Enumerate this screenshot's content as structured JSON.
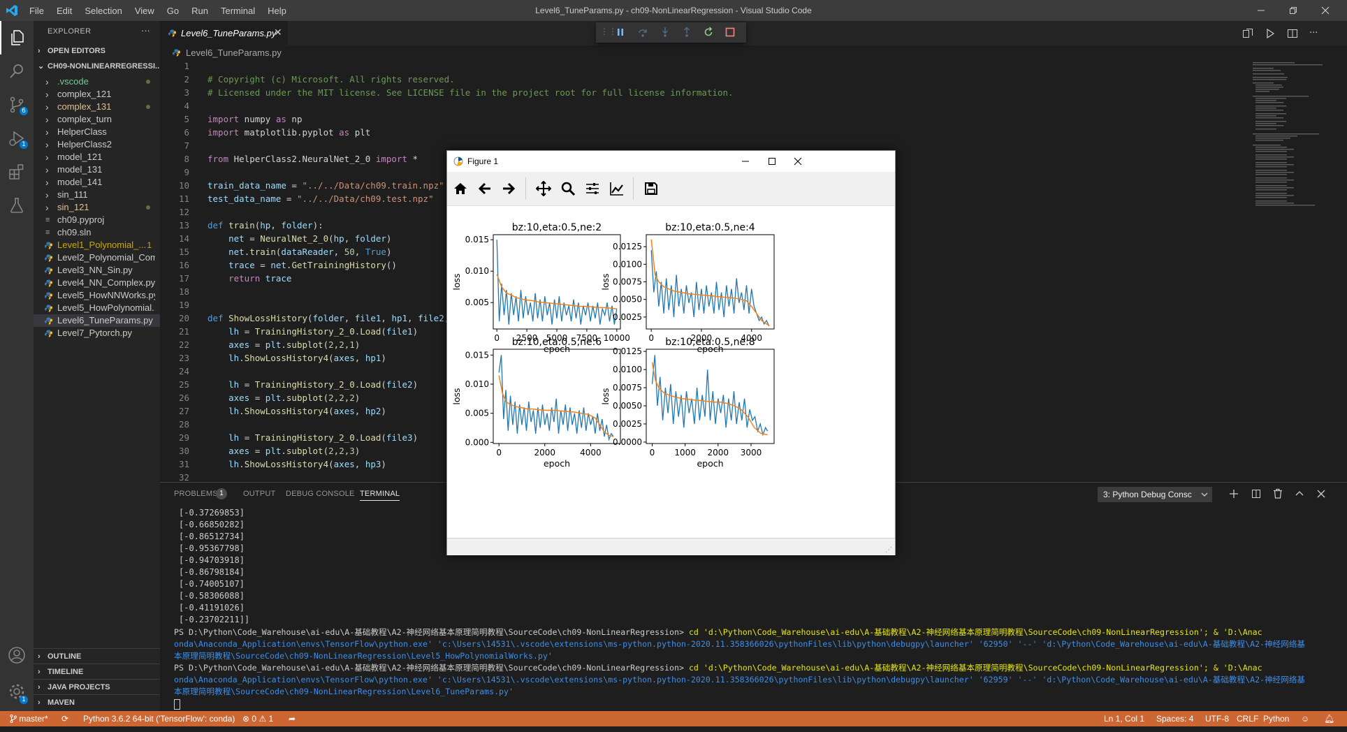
{
  "window": {
    "title": "Level6_TuneParams.py - ch09-NonLinearRegression - Visual Studio Code",
    "menu": [
      "File",
      "Edit",
      "Selection",
      "View",
      "Go",
      "Run",
      "Terminal",
      "Help"
    ]
  },
  "activity_bar": {
    "icons": [
      "explorer-icon",
      "search-icon",
      "source-control-icon",
      "run-debug-icon",
      "extensions-icon",
      "testing-icon",
      "account-icon",
      "settings-icon"
    ],
    "source_control_badge": "6",
    "debug_badge": "1"
  },
  "sidebar": {
    "header": "EXPLORER",
    "open_editors": "OPEN EDITORS",
    "folder": "CH09-NONLINEARREGRESSI...",
    "items": [
      {
        "name": ".vscode",
        "type": "folder",
        "color": "#73c991",
        "dot": true
      },
      {
        "name": "complex_121",
        "type": "folder",
        "color": "#cccccc",
        "dot": false
      },
      {
        "name": "complex_131",
        "type": "folder",
        "color": "#e2c08d",
        "dot": true
      },
      {
        "name": "complex_turn",
        "type": "folder",
        "color": "#cccccc",
        "dot": false
      },
      {
        "name": "HelperClass",
        "type": "folder",
        "color": "#cccccc",
        "dot": false
      },
      {
        "name": "HelperClass2",
        "type": "folder",
        "color": "#cccccc",
        "dot": false
      },
      {
        "name": "model_121",
        "type": "folder",
        "color": "#cccccc",
        "dot": false
      },
      {
        "name": "model_131",
        "type": "folder",
        "color": "#cccccc",
        "dot": false
      },
      {
        "name": "model_141",
        "type": "folder",
        "color": "#cccccc",
        "dot": false
      },
      {
        "name": "sin_111",
        "type": "folder",
        "color": "#cccccc",
        "dot": false
      },
      {
        "name": "sin_121",
        "type": "folder",
        "color": "#e2c08d",
        "dot": true
      },
      {
        "name": "ch09.pyproj",
        "type": "file",
        "color": "#cccccc",
        "dot": false
      },
      {
        "name": "ch09.sln",
        "type": "file",
        "color": "#cccccc",
        "dot": false
      },
      {
        "name": "Level1_Polynomial_...",
        "type": "py",
        "color": "#cca700",
        "dot": false,
        "count": "1"
      },
      {
        "name": "Level2_Polynomial_Com...",
        "type": "py",
        "color": "#cccccc",
        "dot": false
      },
      {
        "name": "Level3_NN_Sin.py",
        "type": "py",
        "color": "#cccccc",
        "dot": false
      },
      {
        "name": "Level4_NN_Complex.py",
        "type": "py",
        "color": "#cccccc",
        "dot": false
      },
      {
        "name": "Level5_HowNNWorks.py",
        "type": "py",
        "color": "#cccccc",
        "dot": false
      },
      {
        "name": "Level5_HowPolynomial...",
        "type": "py",
        "color": "#cccccc",
        "dot": false
      },
      {
        "name": "Level6_TuneParams.py",
        "type": "py",
        "color": "#cccccc",
        "dot": false,
        "selected": true
      },
      {
        "name": "Level7_Pytorch.py",
        "type": "py",
        "color": "#cccccc",
        "dot": false
      }
    ],
    "bottom_sections": [
      "OUTLINE",
      "TIMELINE",
      "JAVA PROJECTS",
      "MAVEN"
    ]
  },
  "editor": {
    "tab": "Level6_TuneParams.py",
    "breadcrumb": "Level6_TuneParams.py",
    "line_numbers": [
      "1",
      "2",
      "3",
      "4",
      "5",
      "6",
      "7",
      "8",
      "9",
      "10",
      "11",
      "12",
      "13",
      "14",
      "15",
      "16",
      "17",
      "18",
      "19",
      "20",
      "21",
      "22",
      "23",
      "24",
      "25",
      "26",
      "27",
      "28",
      "29",
      "30",
      "31",
      "32"
    ]
  },
  "panel": {
    "tabs": [
      "PROBLEMS",
      "OUTPUT",
      "DEBUG CONSOLE",
      "TERMINAL"
    ],
    "problems_count": "1",
    "terminal_select": "3: Python Debug Consc",
    "output_values": [
      "[-0.37269853]",
      "[-0.66850282]",
      "[-0.86512734]",
      "[-0.95367798]",
      "[-0.94703918]",
      "[-0.86798184]",
      "[-0.74005107]",
      "[-0.58306088]",
      "[-0.41191026]",
      "[-0.23702211]]"
    ],
    "prompt1": "PS D:\\Python\\Code_Warehouse\\ai-edu\\A-基础教程\\A2-神经网络基本原理简明教程\\SourceCode\\ch09-NonLinearRegression> ",
    "cmd1_a": "cd 'd:\\Python\\Code_Warehouse\\ai-edu\\A-基础教程\\A2-神经网络基本原理简明教程\\SourceCode\\ch09-NonLinearRegression'; & 'D:\\Anac",
    "cmd1_b": "onda\\Anaconda_Application\\envs\\TensorFlow\\python.exe' 'c:\\Users\\14531\\.vscode\\extensions\\ms-python.python-2020.11.358366026\\pythonFiles\\lib\\python\\debugpy\\launcher' '62950' '--' 'd:\\Python\\Code_Warehouse\\ai-edu\\A-基础教程\\A2-神经网络基",
    "cmd1_c": "本原理简明教程\\SourceCode\\ch09-NonLinearRegression\\Level5_HowPolynomialWorks.py'",
    "prompt2": "PS D:\\Python\\Code_Warehouse\\ai-edu\\A-基础教程\\A2-神经网络基本原理简明教程\\SourceCode\\ch09-NonLinearRegression> ",
    "cmd2_a": "cd 'd:\\Python\\Code_Warehouse\\ai-edu\\A-基础教程\\A2-神经网络基本原理简明教程\\SourceCode\\ch09-NonLinearRegression'; & 'D:\\Anac",
    "cmd2_b": "onda\\Anaconda_Application\\envs\\TensorFlow\\python.exe' 'c:\\Users\\14531\\.vscode\\extensions\\ms-python.python-2020.11.358366026\\pythonFiles\\lib\\python\\debugpy\\launcher' '62959' '--' 'd:\\Python\\Code_Warehouse\\ai-edu\\A-基础教程\\A2-神经网络基",
    "cmd2_c": "本原理简明教程\\SourceCode\\ch09-NonLinearRegression\\Level6_TuneParams.py'"
  },
  "status_bar": {
    "branch": "master*",
    "interpreter": "Python 3.6.2 64-bit ('TensorFlow': conda)",
    "errors": "0",
    "warnings": "1",
    "position": "Ln 1, Col 1",
    "spaces": "Spaces: 4",
    "encoding": "UTF-8",
    "eol": "CRLF",
    "language": "Python",
    "color": "#cc6633"
  },
  "figure_window": {
    "title": "Figure 1",
    "toolbar": [
      "home-icon",
      "back-icon",
      "forward-icon",
      "pan-icon",
      "zoom-icon",
      "configure-icon",
      "edit-curve-icon",
      "save-icon"
    ]
  },
  "chart_data": [
    {
      "type": "line",
      "title": "bz:10,eta:0.5,ne:2",
      "xlabel": "epoch",
      "ylabel": "loss",
      "xlim": [
        -300,
        10300
      ],
      "ylim": [
        0.0008,
        0.0158
      ],
      "xticks": [
        0,
        2500,
        5000,
        7500,
        10000
      ],
      "xtick_labels": [
        "0",
        "2500",
        "5000",
        "7500",
        "10000"
      ],
      "yticks": [
        0.005,
        0.01,
        0.015
      ],
      "ytick_labels": [
        "0.005",
        "0.010",
        "0.015"
      ],
      "series": [
        {
          "color": "#1f77b4",
          "x": [
            0,
            200,
            400,
            600,
            800,
            1000,
            1200,
            1400,
            1600,
            1800,
            2000,
            2200,
            2400,
            2600,
            2800,
            3000,
            3200,
            3400,
            3600,
            3800,
            4000,
            4200,
            4400,
            4600,
            4800,
            5000,
            5200,
            5400,
            5600,
            5800,
            6000,
            6200,
            6400,
            6600,
            6800,
            7000,
            7200,
            7400,
            7600,
            7800,
            8000,
            8200,
            8400,
            8600,
            8800,
            9000,
            9200,
            9400,
            9600,
            9800,
            10000
          ],
          "y": [
            0.015,
            0.002,
            0.008,
            0.003,
            0.007,
            0.0015,
            0.0065,
            0.003,
            0.006,
            0.002,
            0.007,
            0.0025,
            0.006,
            0.003,
            0.005,
            0.002,
            0.0065,
            0.0025,
            0.0055,
            0.002,
            0.006,
            0.003,
            0.005,
            0.0015,
            0.0055,
            0.0025,
            0.006,
            0.002,
            0.005,
            0.003,
            0.0045,
            0.002,
            0.0055,
            0.0025,
            0.005,
            0.0015,
            0.0045,
            0.003,
            0.005,
            0.002,
            0.0045,
            0.0025,
            0.005,
            0.0015,
            0.004,
            0.003,
            0.005,
            0.002,
            0.0045,
            0.0015,
            0.004
          ]
        },
        {
          "color": "#ff7f0e",
          "x": [
            0,
            400,
            800,
            1200,
            1600,
            2000,
            2500,
            3000,
            3500,
            4000,
            4500,
            5000,
            5500,
            6000,
            6500,
            7000,
            7500,
            8000,
            8500,
            9000,
            9500,
            10000
          ],
          "y": [
            0.0095,
            0.0075,
            0.0065,
            0.0062,
            0.0058,
            0.0056,
            0.0054,
            0.0053,
            0.0051,
            0.005,
            0.0049,
            0.0048,
            0.0047,
            0.0046,
            0.0045,
            0.0044,
            0.0044,
            0.0043,
            0.0042,
            0.0042,
            0.0041,
            0.004
          ]
        }
      ]
    },
    {
      "type": "line",
      "title": "bz:10,eta:0.5,ne:4",
      "xlabel": "epoch",
      "ylabel": "loss",
      "xlim": [
        -200,
        4900
      ],
      "ylim": [
        0.0008,
        0.0142
      ],
      "xticks": [
        0,
        2000,
        4000
      ],
      "xtick_labels": [
        "0",
        "2000",
        "4000"
      ],
      "yticks": [
        0.0025,
        0.005,
        0.0075,
        0.01,
        0.0125
      ],
      "ytick_labels": [
        "0.0025",
        "0.0050",
        "0.0075",
        "0.0100",
        "0.0125"
      ],
      "series": [
        {
          "color": "#1f77b4",
          "x": [
            0,
            100,
            200,
            300,
            400,
            500,
            600,
            700,
            800,
            900,
            1000,
            1100,
            1200,
            1300,
            1400,
            1500,
            1600,
            1700,
            1800,
            1900,
            2000,
            2100,
            2200,
            2300,
            2400,
            2500,
            2600,
            2700,
            2800,
            2900,
            3000,
            3100,
            3200,
            3300,
            3400,
            3500,
            3600,
            3700,
            3800,
            3900,
            4000,
            4100,
            4200,
            4300,
            4400,
            4500,
            4600,
            4700
          ],
          "y": [
            0.012,
            0.006,
            0.009,
            0.004,
            0.0075,
            0.003,
            0.008,
            0.0035,
            0.007,
            0.0025,
            0.0085,
            0.004,
            0.0065,
            0.003,
            0.007,
            0.0045,
            0.006,
            0.0025,
            0.0075,
            0.0035,
            0.0065,
            0.003,
            0.007,
            0.004,
            0.006,
            0.003,
            0.0075,
            0.0035,
            0.006,
            0.0025,
            0.007,
            0.004,
            0.0065,
            0.003,
            0.008,
            0.0045,
            0.006,
            0.0035,
            0.007,
            0.003,
            0.0065,
            0.004,
            0.003,
            0.002,
            0.0025,
            0.0015,
            0.002,
            0.0012
          ]
        },
        {
          "color": "#ff7f0e",
          "x": [
            0,
            150,
            300,
            500,
            700,
            900,
            1200,
            1500,
            1800,
            2100,
            2400,
            2700,
            3000,
            3300,
            3600,
            3800,
            4000,
            4200,
            4400,
            4600,
            4700
          ],
          "y": [
            0.0135,
            0.0085,
            0.0075,
            0.0068,
            0.0065,
            0.0062,
            0.006,
            0.0058,
            0.0057,
            0.0056,
            0.0055,
            0.0054,
            0.0053,
            0.0052,
            0.005,
            0.0048,
            0.004,
            0.003,
            0.002,
            0.0015,
            0.0013
          ]
        }
      ]
    },
    {
      "type": "line",
      "title": "bz:10,eta:0.5,ne:6",
      "xlabel": "epoch",
      "ylabel": "loss",
      "xlim": [
        -250,
        5300
      ],
      "ylim": [
        -0.0002,
        0.016
      ],
      "xticks": [
        0,
        2000,
        4000
      ],
      "xtick_labels": [
        "0",
        "2000",
        "4000"
      ],
      "yticks": [
        0.0,
        0.005,
        0.01,
        0.015
      ],
      "ytick_labels": [
        "0.000",
        "0.005",
        "0.010",
        "0.015"
      ],
      "series": [
        {
          "color": "#1f77b4",
          "x": [
            0,
            100,
            200,
            300,
            400,
            500,
            600,
            700,
            800,
            900,
            1000,
            1100,
            1200,
            1300,
            1400,
            1500,
            1600,
            1700,
            1800,
            1900,
            2000,
            2100,
            2200,
            2300,
            2400,
            2500,
            2600,
            2700,
            2800,
            2900,
            3000,
            3100,
            3200,
            3300,
            3400,
            3500,
            3600,
            3700,
            3800,
            3900,
            4000,
            4100,
            4200,
            4300,
            4400,
            4500,
            4600,
            4700,
            4800,
            4900,
            5000
          ],
          "y": [
            0.012,
            0.015,
            0.004,
            0.009,
            0.002,
            0.008,
            0.003,
            0.007,
            0.0015,
            0.0065,
            0.003,
            0.006,
            0.002,
            0.007,
            0.0035,
            0.0055,
            0.0015,
            0.006,
            0.0025,
            0.0065,
            0.003,
            0.005,
            0.002,
            0.006,
            0.0035,
            0.0075,
            0.0015,
            0.0055,
            0.003,
            0.0065,
            0.002,
            0.006,
            0.003,
            0.005,
            0.0015,
            0.0055,
            0.0025,
            0.006,
            0.002,
            0.005,
            0.003,
            0.0045,
            0.0015,
            0.005,
            0.002,
            0.004,
            0.001,
            0.003,
            0.0005,
            0.0015,
            0.001
          ]
        },
        {
          "color": "#ff7f0e",
          "x": [
            0,
            150,
            300,
            500,
            700,
            900,
            1200,
            1500,
            1800,
            2100,
            2400,
            2700,
            3000,
            3300,
            3600,
            3900,
            4200,
            4400,
            4600,
            4800,
            5000
          ],
          "y": [
            0.0115,
            0.0085,
            0.007,
            0.0065,
            0.0062,
            0.006,
            0.0058,
            0.0057,
            0.0056,
            0.0055,
            0.0055,
            0.0054,
            0.0053,
            0.0052,
            0.005,
            0.0048,
            0.0042,
            0.003,
            0.0018,
            0.0012,
            0.001
          ]
        }
      ]
    },
    {
      "type": "line",
      "title": "bz:10,eta:0.5,ne:8",
      "xlabel": "epoch",
      "ylabel": "loss",
      "xlim": [
        -180,
        3700
      ],
      "ylim": [
        -0.0002,
        0.0128
      ],
      "xticks": [
        0,
        1000,
        2000,
        3000
      ],
      "xtick_labels": [
        "0",
        "1000",
        "2000",
        "3000"
      ],
      "yticks": [
        0.0,
        0.0025,
        0.005,
        0.0075,
        0.01,
        0.0125
      ],
      "ytick_labels": [
        "0.0000",
        "0.0025",
        "0.0050",
        "0.0075",
        "0.0100",
        "0.0125"
      ],
      "series": [
        {
          "color": "#1f77b4",
          "x": [
            0,
            80,
            160,
            240,
            320,
            400,
            480,
            560,
            640,
            720,
            800,
            880,
            960,
            1040,
            1120,
            1200,
            1280,
            1360,
            1440,
            1520,
            1600,
            1680,
            1760,
            1840,
            1920,
            2000,
            2080,
            2160,
            2240,
            2320,
            2400,
            2480,
            2560,
            2640,
            2720,
            2800,
            2880,
            2960,
            3040,
            3120,
            3200,
            3280,
            3360,
            3440,
            3500
          ],
          "y": [
            0.008,
            0.012,
            0.005,
            0.009,
            0.003,
            0.0075,
            0.004,
            0.008,
            0.0025,
            0.007,
            0.0035,
            0.0065,
            0.002,
            0.007,
            0.004,
            0.006,
            0.0025,
            0.0075,
            0.003,
            0.0065,
            0.0035,
            0.01,
            0.003,
            0.007,
            0.0025,
            0.006,
            0.004,
            0.0065,
            0.002,
            0.006,
            0.003,
            0.007,
            0.0025,
            0.0055,
            0.003,
            0.006,
            0.002,
            0.0045,
            0.003,
            0.0035,
            0.0015,
            0.0025,
            0.001,
            0.002,
            0.0015
          ]
        },
        {
          "color": "#ff7f0e",
          "x": [
            0,
            100,
            200,
            350,
            500,
            700,
            900,
            1100,
            1300,
            1500,
            1700,
            1900,
            2100,
            2300,
            2500,
            2700,
            2900,
            3100,
            3300,
            3500
          ],
          "y": [
            0.011,
            0.0085,
            0.0075,
            0.0068,
            0.0065,
            0.0062,
            0.006,
            0.0059,
            0.0058,
            0.0057,
            0.0056,
            0.0055,
            0.0055,
            0.0053,
            0.005,
            0.0045,
            0.0035,
            0.002,
            0.0012,
            0.001
          ]
        }
      ]
    }
  ]
}
